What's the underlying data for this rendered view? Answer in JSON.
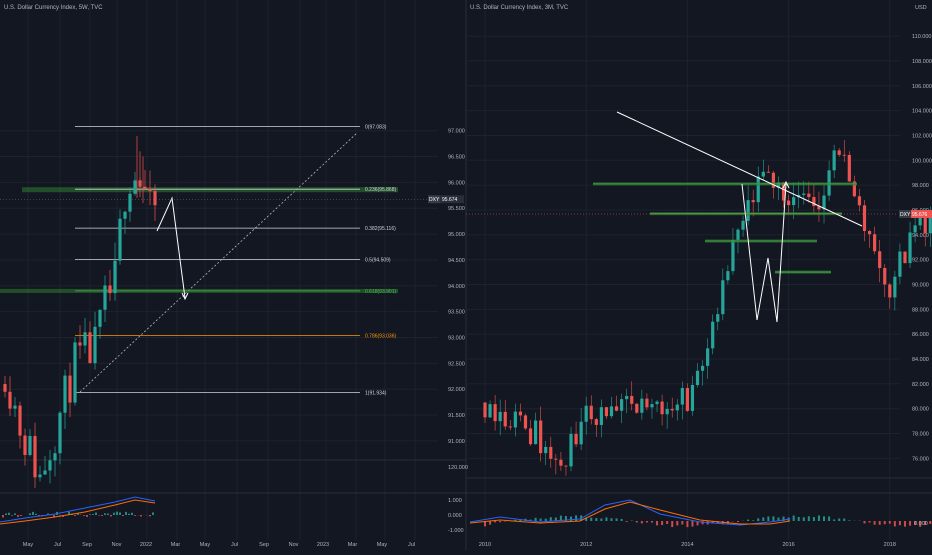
{
  "colors": {
    "background": "#131722",
    "grid": "#1e222d",
    "up": "#26a69a",
    "down": "#ef5350",
    "axis_text": "#b2b5be",
    "fib_line": "#d1d4dc",
    "fib_orange": "#ff9800",
    "fib_green": "#4caf50",
    "zone_fill": "#2e7d32",
    "price_badge_left": "#2a2e39",
    "price_badge_right": "#ef5350",
    "macd_line": "#2962ff",
    "signal_line": "#ff6d00"
  },
  "left_panel": {
    "title": "U.S. Dollar Currency Index, 5W, TVC",
    "price_labels": [
      {
        "v": 97.0,
        "t": "97.000"
      },
      {
        "v": 96.5,
        "t": "96.500"
      },
      {
        "v": 96.0,
        "t": "96.000"
      },
      {
        "v": 95.5,
        "t": "95.500"
      },
      {
        "v": 95.0,
        "t": "95.000"
      },
      {
        "v": 94.5,
        "t": "94.500"
      },
      {
        "v": 94.0,
        "t": "94.000"
      },
      {
        "v": 93.5,
        "t": "93.500"
      },
      {
        "v": 93.0,
        "t": "93.000"
      },
      {
        "v": 92.5,
        "t": "92.500"
      },
      {
        "v": 92.0,
        "t": "92.000"
      },
      {
        "v": 91.5,
        "t": "91.500"
      },
      {
        "v": 91.0,
        "t": "91.000"
      }
    ],
    "price_axis_extra": "120.000",
    "fib_levels": [
      {
        "label": "0(97.083)",
        "price": 97.083,
        "color": "fib_line"
      },
      {
        "label": "0.236(95.868)",
        "price": 95.868,
        "color": "fib_line"
      },
      {
        "label": "0.382(95.116)",
        "price": 95.116,
        "color": "fib_line"
      },
      {
        "label": "0.5(94.509)",
        "price": 94.509,
        "color": "fib_line"
      },
      {
        "label": "0.618(93.901)",
        "price": 93.901,
        "color": "fib_green"
      },
      {
        "label": "0.786(93.036)",
        "price": 93.036,
        "color": "fib_orange"
      },
      {
        "label": "1(91.934)",
        "price": 91.934,
        "color": "fib_line"
      }
    ],
    "current_price": {
      "ticker": "DXY",
      "value": "95.674",
      "price": 95.674
    },
    "time_labels": [
      "May",
      "Jul",
      "Sep",
      "Nov",
      "2022",
      "Mar",
      "May",
      "Jul",
      "Sep",
      "Nov",
      "2023",
      "Mar",
      "May",
      "Jul"
    ],
    "macd_labels": []
  },
  "right_panel": {
    "title": "U.S. Dollar Currency Index, 3M, TVC",
    "currency": "USD",
    "price_labels": [
      {
        "v": 110,
        "t": "110.000"
      },
      {
        "v": 108,
        "t": "108.000"
      },
      {
        "v": 106,
        "t": "106.000"
      },
      {
        "v": 104,
        "t": "104.000"
      },
      {
        "v": 102,
        "t": "102.000"
      },
      {
        "v": 100,
        "t": "100.000"
      },
      {
        "v": 98,
        "t": "98.000"
      },
      {
        "v": 96,
        "t": "96.000"
      },
      {
        "v": 94,
        "t": "94.000"
      },
      {
        "v": 92,
        "t": "92.000"
      },
      {
        "v": 90,
        "t": "90.000"
      },
      {
        "v": 88,
        "t": "88.000"
      },
      {
        "v": 86,
        "t": "86.000"
      },
      {
        "v": 84,
        "t": "84.000"
      },
      {
        "v": 82,
        "t": "82.000"
      },
      {
        "v": 80,
        "t": "80.000"
      },
      {
        "v": 78,
        "t": "78.000"
      },
      {
        "v": 76,
        "t": "76.000"
      }
    ],
    "current_price": {
      "ticker": "DXY",
      "value": "95.676",
      "price": 95.676
    },
    "zones": [
      {
        "price": 98.1
      },
      {
        "price": 95.7
      },
      {
        "price": 93.5
      },
      {
        "price": 91.0
      }
    ],
    "time_labels": [
      "2010",
      "2012",
      "2014",
      "2016",
      "2018",
      "2020",
      "2022",
      "2024",
      "2026"
    ],
    "macd_labels": [
      "1.000",
      "0.000",
      "-1.000"
    ],
    "macd_right_label": "0.000"
  },
  "chart_data": [
    {
      "type": "candlestick",
      "title": "U.S. Dollar Currency Index, 5W, TVC",
      "xlabel": "",
      "ylabel": "",
      "ylim": [
        90.0,
        98.5
      ],
      "x": [
        "2021-04",
        "2021-05",
        "2021-06",
        "2021-07",
        "2021-08",
        "2021-09",
        "2021-10",
        "2021-11",
        "2021-12",
        "2022-01"
      ],
      "close": [
        91.3,
        90.1,
        92.3,
        92.0,
        92.6,
        94.2,
        93.9,
        96.1,
        96.0,
        95.7
      ],
      "annotations": [
        "Fibonacci retracement 91.934 to 97.083",
        "projected path to ~94.0"
      ]
    },
    {
      "type": "candlestick",
      "title": "U.S. Dollar Currency Index, 3M, TVC",
      "xlabel": "",
      "ylabel": "",
      "ylim": [
        74,
        112
      ],
      "x": [
        2010,
        2011,
        2012,
        2013,
        2014,
        2015,
        2016,
        2017,
        2018,
        2019,
        2020,
        2021,
        2022
      ],
      "close": [
        79.0,
        80.0,
        79.8,
        80.5,
        88.0,
        98.5,
        100.0,
        92.3,
        96.0,
        96.5,
        89.9,
        95.7,
        95.7
      ],
      "annotations": [
        "descending trendline from 2015 high",
        "W pattern 2020-2021"
      ]
    }
  ]
}
